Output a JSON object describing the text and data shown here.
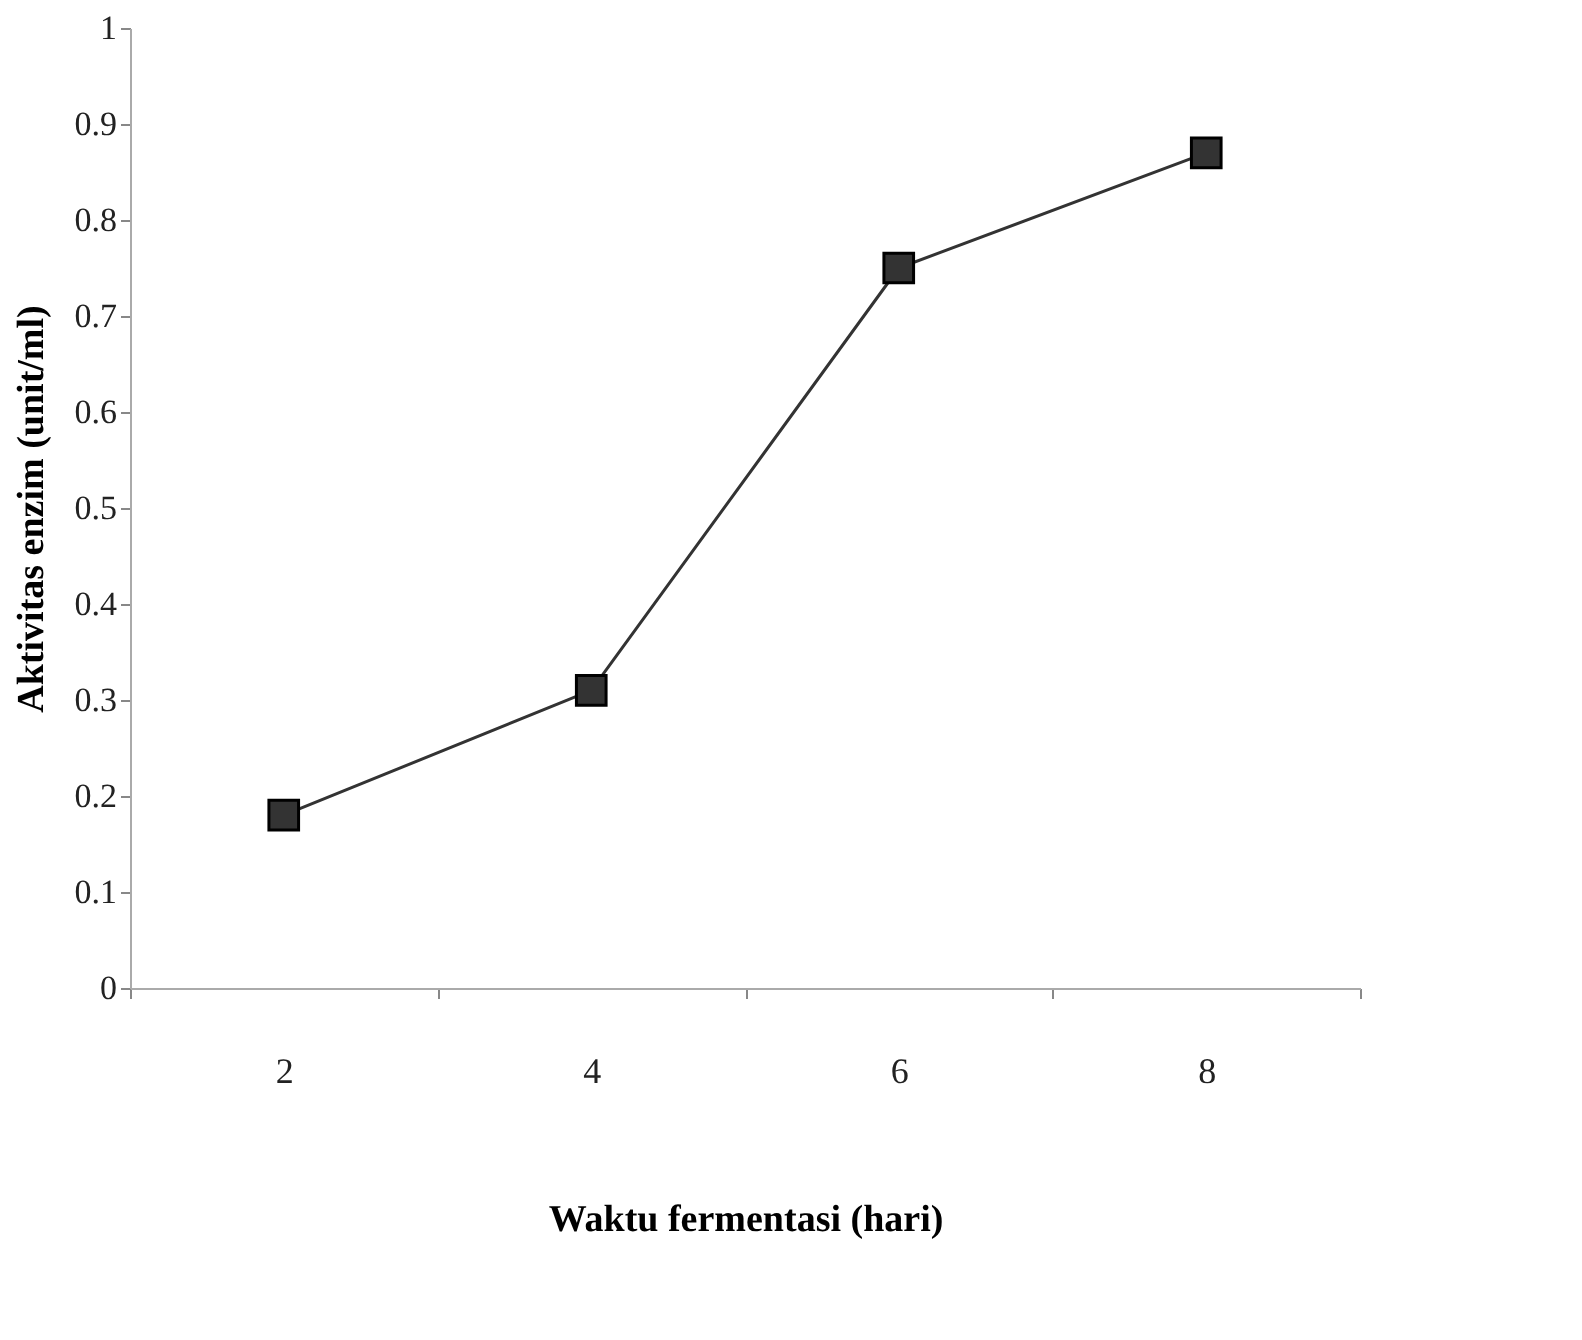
{
  "chart_data": {
    "type": "line",
    "xlabel": "Waktu fermentasi (hari)",
    "ylabel": "Aktivitas enzim (unit/ml)",
    "categories": [
      "2",
      "4",
      "6",
      "8"
    ],
    "series": [
      {
        "color": "#333333",
        "values": [
          0.18,
          0.31,
          0.75,
          0.87
        ]
      }
    ],
    "ylim": [
      0,
      1
    ],
    "yticks": [
      0,
      0.1,
      0.2,
      0.3,
      0.4,
      0.5,
      0.6,
      0.7,
      0.8,
      0.9,
      1
    ],
    "marker": "square",
    "line_style": "solid",
    "grid": false,
    "legend": false
  }
}
